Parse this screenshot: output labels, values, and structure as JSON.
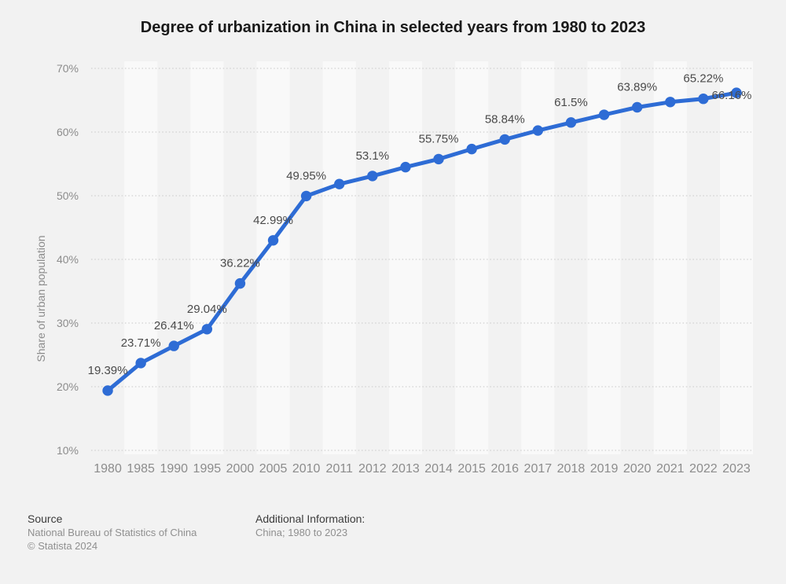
{
  "page": {
    "background_color": "#f2f2f2",
    "accent_color": "#2e6cd5"
  },
  "chart_data": {
    "type": "line",
    "title": "Degree of urbanization in China in selected years from 1980 to 2023",
    "xlabel": "",
    "ylabel": "Share of urban population",
    "ylim": [
      10,
      70
    ],
    "ytick_step": 10,
    "ytick_labels": [
      "10%",
      "20%",
      "30%",
      "40%",
      "50%",
      "60%",
      "70%"
    ],
    "grid": "horizontal dotted",
    "legend_position": "none",
    "line_color": "#2e6cd5",
    "categories": [
      "1980",
      "1985",
      "1990",
      "1995",
      "2000",
      "2005",
      "2010",
      "2011",
      "2012",
      "2013",
      "2014",
      "2015",
      "2016",
      "2017",
      "2018",
      "2019",
      "2020",
      "2021",
      "2022",
      "2023"
    ],
    "series": [
      {
        "name": "Share of urban population",
        "values": [
          19.39,
          23.71,
          26.41,
          29.04,
          36.22,
          42.99,
          49.95,
          51.83,
          53.1,
          54.49,
          55.75,
          57.33,
          58.84,
          60.24,
          61.5,
          62.71,
          63.89,
          64.72,
          65.22,
          66.16
        ],
        "point_labels": [
          "19.39%",
          "23.71%",
          "26.41%",
          "29.04%",
          "36.22%",
          "42.99%",
          "49.95%",
          "",
          "53.1%",
          "",
          "55.75%",
          "",
          "58.84%",
          "",
          "61.5%",
          "",
          "63.89%",
          "",
          "65.22%",
          "66.16%"
        ]
      }
    ],
    "last_point_label_side": "left"
  },
  "footer": {
    "source_heading": "Source",
    "source_name": "National Bureau of Statistics of China",
    "copyright": "© Statista 2024",
    "additional_heading": "Additional Information:",
    "additional_value": "China; 1980 to 2023"
  }
}
